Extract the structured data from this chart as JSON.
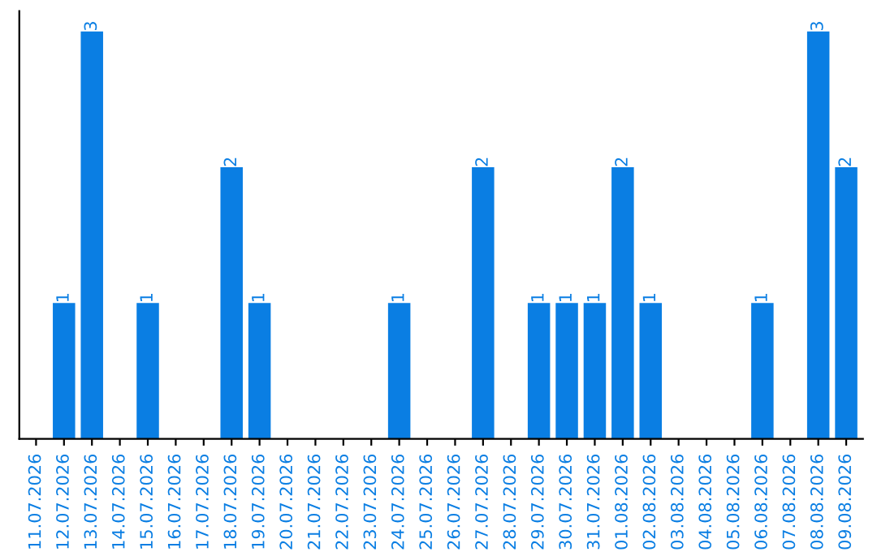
{
  "chart_data": {
    "type": "bar",
    "categories": [
      "11.07.2026",
      "12.07.2026",
      "13.07.2026",
      "14.07.2026",
      "15.07.2026",
      "16.07.2026",
      "17.07.2026",
      "18.07.2026",
      "19.07.2026",
      "20.07.2026",
      "21.07.2026",
      "22.07.2026",
      "23.07.2026",
      "24.07.2026",
      "25.07.2026",
      "26.07.2026",
      "27.07.2026",
      "28.07.2026",
      "29.07.2026",
      "30.07.2026",
      "31.07.2026",
      "01.08.2026",
      "02.08.2026",
      "03.08.2026",
      "04.08.2026",
      "05.08.2026",
      "06.08.2026",
      "07.08.2026",
      "08.08.2026",
      "09.08.2026"
    ],
    "values": [
      0,
      1,
      3,
      0,
      1,
      0,
      0,
      2,
      1,
      0,
      0,
      0,
      0,
      1,
      0,
      0,
      2,
      0,
      1,
      1,
      1,
      2,
      1,
      0,
      0,
      0,
      1,
      0,
      3,
      2
    ],
    "value_labels": [
      null,
      "1",
      "3",
      null,
      "1",
      null,
      null,
      "2",
      "1",
      null,
      null,
      null,
      null,
      "1",
      null,
      null,
      "2",
      null,
      "1",
      "1",
      "1",
      "2",
      "1",
      null,
      null,
      null,
      "1",
      null,
      "3",
      "2"
    ],
    "color": "#0a7ee3",
    "ylim": [
      0,
      3.15
    ],
    "tick_labels": "x",
    "grid": false,
    "legend": false
  }
}
